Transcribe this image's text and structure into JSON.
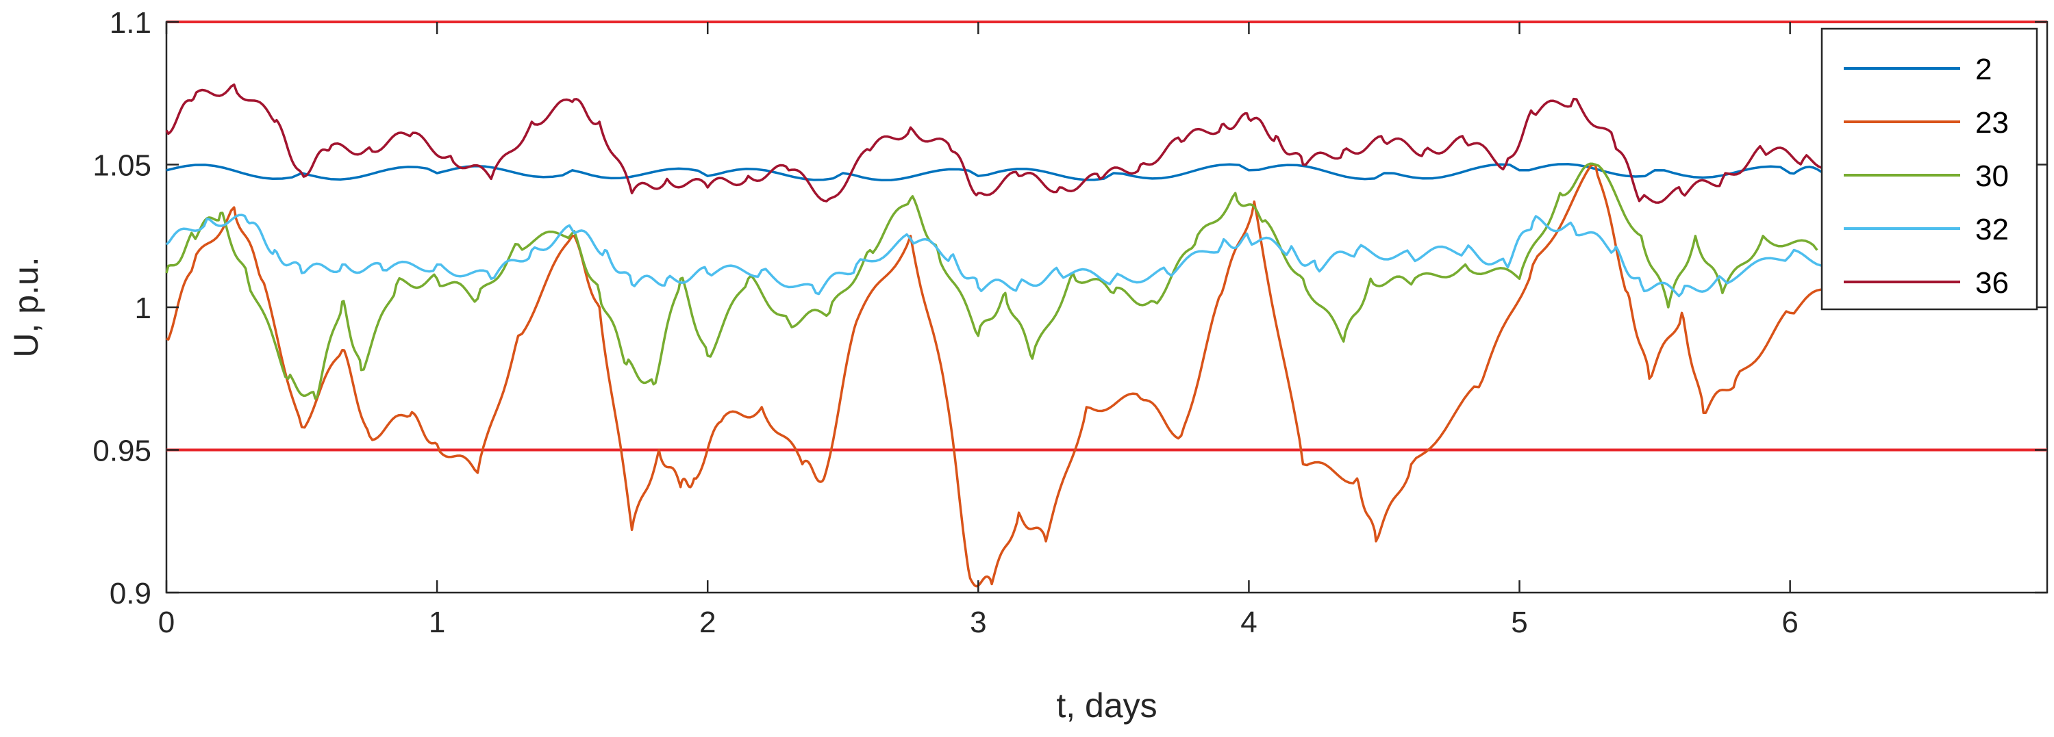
{
  "chart_data": {
    "type": "line",
    "xlabel": "t, days",
    "ylabel": "U, p.u.",
    "xlim": [
      0,
      6.95
    ],
    "ylim": [
      0.9,
      1.1
    ],
    "xticks": [
      0,
      1,
      2,
      3,
      4,
      5,
      6
    ],
    "xtick_labels": [
      "0",
      "1",
      "2",
      "3",
      "4",
      "5",
      "6"
    ],
    "yticks": [
      0.9,
      0.95,
      1,
      1.05,
      1.1
    ],
    "ytick_labels": [
      "0.9",
      "0.95",
      "1",
      "1.05",
      "1.1"
    ],
    "grid": false,
    "legend_position": "top-right",
    "limit_lines": [
      {
        "y": 1.1,
        "color": "#e8262b"
      },
      {
        "y": 0.95,
        "color": "#e8262b"
      }
    ],
    "series": [
      {
        "name": "2",
        "color": "#0072bd",
        "x": [
          0,
          0.5,
          1.0,
          1.5,
          2.0,
          2.5,
          3.0,
          3.5,
          4.0,
          4.5,
          5.0,
          5.5,
          6.0,
          6.2
        ],
        "y": [
          1.048,
          1.047,
          1.047,
          1.048,
          1.046,
          1.047,
          1.046,
          1.047,
          1.048,
          1.047,
          1.048,
          1.048,
          1.047,
          1.047
        ]
      },
      {
        "name": "23",
        "color": "#d95319",
        "x": [
          0,
          0.1,
          0.25,
          0.35,
          0.5,
          0.65,
          0.75,
          0.9,
          1.0,
          1.15,
          1.3,
          1.5,
          1.6,
          1.72,
          1.82,
          1.9,
          1.95,
          2.05,
          2.2,
          2.35,
          2.43,
          2.55,
          2.75,
          2.88,
          2.97,
          3.05,
          3.15,
          3.25,
          3.4,
          3.6,
          3.75,
          3.9,
          4.02,
          4.2,
          4.4,
          4.47,
          4.6,
          4.85,
          5.05,
          5.28,
          5.4,
          5.48,
          5.6,
          5.68,
          5.8,
          6.0,
          6.2
        ],
        "y": [
          0.989,
          1.015,
          1.035,
          1.01,
          0.958,
          0.985,
          0.955,
          0.962,
          0.952,
          0.942,
          0.99,
          1.025,
          1.0,
          0.922,
          0.95,
          0.937,
          0.94,
          0.96,
          0.965,
          0.945,
          0.94,
          0.995,
          1.025,
          0.97,
          0.905,
          0.903,
          0.928,
          0.918,
          0.965,
          0.968,
          0.955,
          1.005,
          1.037,
          0.945,
          0.94,
          0.918,
          0.945,
          0.972,
          1.015,
          1.05,
          1.005,
          0.975,
          0.998,
          0.963,
          0.975,
          0.998,
          1.01
        ]
      },
      {
        "name": "30",
        "color": "#77ac30",
        "x": [
          0,
          0.1,
          0.2,
          0.3,
          0.45,
          0.55,
          0.65,
          0.72,
          0.85,
          1.0,
          1.15,
          1.3,
          1.5,
          1.6,
          1.7,
          1.8,
          1.9,
          2.0,
          2.15,
          2.3,
          2.45,
          2.6,
          2.75,
          2.85,
          3.0,
          3.1,
          3.2,
          3.35,
          3.5,
          3.65,
          3.8,
          3.95,
          4.05,
          4.2,
          4.35,
          4.45,
          4.6,
          4.8,
          5.0,
          5.15,
          5.28,
          5.45,
          5.55,
          5.65,
          5.75,
          5.9,
          6.1
        ],
        "y": [
          1.012,
          1.025,
          1.033,
          1.01,
          0.975,
          0.968,
          1.002,
          0.978,
          1.008,
          1.01,
          1.003,
          1.022,
          1.026,
          1.005,
          0.98,
          0.973,
          1.01,
          0.983,
          1.01,
          0.995,
          0.998,
          1.02,
          1.038,
          1.02,
          0.99,
          1.005,
          0.982,
          1.012,
          1.005,
          1.002,
          1.022,
          1.04,
          1.03,
          1.01,
          0.988,
          1.01,
          1.008,
          1.015,
          1.01,
          1.04,
          1.05,
          1.025,
          1.0,
          1.025,
          1.005,
          1.025,
          1.02
        ]
      },
      {
        "name": "32",
        "color": "#4dbeee",
        "x": [
          0,
          0.15,
          0.3,
          0.4,
          0.5,
          0.65,
          0.8,
          1.0,
          1.2,
          1.35,
          1.5,
          1.62,
          1.72,
          1.85,
          2.0,
          2.2,
          2.4,
          2.55,
          2.75,
          2.9,
          3.0,
          3.15,
          3.3,
          3.5,
          3.7,
          3.9,
          4.0,
          4.15,
          4.25,
          4.4,
          4.6,
          4.8,
          4.95,
          5.05,
          5.2,
          5.35,
          5.45,
          5.6,
          5.75,
          6.0,
          6.2
        ],
        "y": [
          1.022,
          1.031,
          1.03,
          1.02,
          1.012,
          1.015,
          1.013,
          1.015,
          1.01,
          1.02,
          1.027,
          1.02,
          1.008,
          1.01,
          1.012,
          1.013,
          1.005,
          1.015,
          1.024,
          1.018,
          1.007,
          1.008,
          1.012,
          1.01,
          1.012,
          1.022,
          1.024,
          1.02,
          1.014,
          1.02,
          1.018,
          1.02,
          1.015,
          1.03,
          1.028,
          1.02,
          1.008,
          1.005,
          1.01,
          1.018,
          1.016
        ]
      },
      {
        "name": "36",
        "color": "#a2142f",
        "x": [
          0,
          0.1,
          0.25,
          0.4,
          0.5,
          0.6,
          0.75,
          0.9,
          1.05,
          1.2,
          1.35,
          1.5,
          1.6,
          1.72,
          1.85,
          2.0,
          2.15,
          2.3,
          2.45,
          2.6,
          2.75,
          2.9,
          3.0,
          3.15,
          3.3,
          3.45,
          3.6,
          3.75,
          3.9,
          4.0,
          4.1,
          4.2,
          4.35,
          4.5,
          4.65,
          4.8,
          4.95,
          5.05,
          5.2,
          5.35,
          5.45,
          5.6,
          5.75,
          5.9,
          6.05,
          6.2
        ],
        "y": [
          1.062,
          1.073,
          1.078,
          1.065,
          1.047,
          1.055,
          1.056,
          1.06,
          1.053,
          1.045,
          1.065,
          1.072,
          1.065,
          1.04,
          1.045,
          1.042,
          1.046,
          1.048,
          1.038,
          1.055,
          1.063,
          1.055,
          1.04,
          1.046,
          1.042,
          1.045,
          1.05,
          1.058,
          1.064,
          1.066,
          1.06,
          1.05,
          1.055,
          1.058,
          1.055,
          1.058,
          1.05,
          1.068,
          1.073,
          1.058,
          1.038,
          1.04,
          1.045,
          1.055,
          1.052,
          1.05
        ]
      }
    ]
  }
}
